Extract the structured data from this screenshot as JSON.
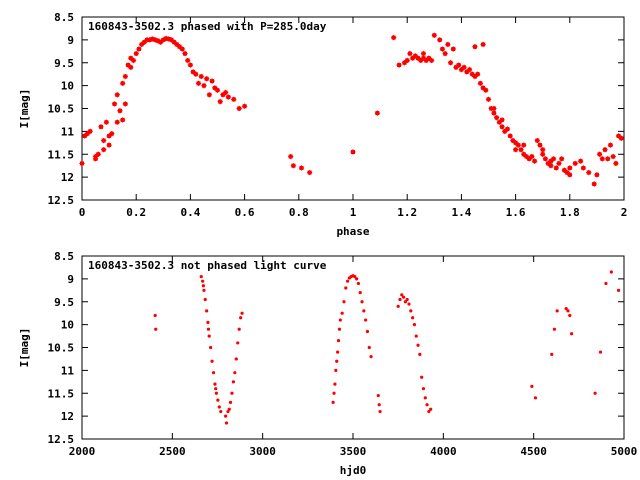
{
  "chart_data": [
    {
      "type": "scatter",
      "title": "160843-3502.3 phased with P=285.0day",
      "xlabel": "phase",
      "ylabel": "I[mag]",
      "xlim": [
        0,
        2
      ],
      "ylim": [
        8.5,
        12.5
      ],
      "y_inverted": true,
      "x_ticks": [
        0,
        0.2,
        0.4,
        0.6,
        0.8,
        1,
        1.2,
        1.4,
        1.6,
        1.8,
        2
      ],
      "y_ticks": [
        8.5,
        9,
        9.5,
        10,
        10.5,
        11,
        11.5,
        12,
        12.5
      ],
      "marker_color": "#ff0000",
      "grid": false,
      "series": [
        {
          "values": [
            [
              0.0,
              11.7
            ],
            [
              0.01,
              11.1
            ],
            [
              0.02,
              11.05
            ],
            [
              0.03,
              11.0
            ],
            [
              0.05,
              11.55
            ],
            [
              0.06,
              11.5
            ],
            [
              0.07,
              10.9
            ],
            [
              0.08,
              11.4
            ],
            [
              0.09,
              10.8
            ],
            [
              0.1,
              11.3
            ],
            [
              0.11,
              11.05
            ],
            [
              0.12,
              10.4
            ],
            [
              0.13,
              10.2
            ],
            [
              0.14,
              10.55
            ],
            [
              0.15,
              9.95
            ],
            [
              0.16,
              9.8
            ],
            [
              0.17,
              9.55
            ],
            [
              0.18,
              9.4
            ],
            [
              0.2,
              9.3
            ],
            [
              0.21,
              9.2
            ],
            [
              0.22,
              9.1
            ],
            [
              0.23,
              9.05
            ],
            [
              0.24,
              9.0
            ],
            [
              0.25,
              9.0
            ],
            [
              0.26,
              8.98
            ],
            [
              0.27,
              9.0
            ],
            [
              0.28,
              9.02
            ],
            [
              0.29,
              9.05
            ],
            [
              0.3,
              9.0
            ],
            [
              0.31,
              8.97
            ],
            [
              0.32,
              8.98
            ],
            [
              0.33,
              9.0
            ],
            [
              0.34,
              9.05
            ],
            [
              0.35,
              9.1
            ],
            [
              0.36,
              9.15
            ],
            [
              0.37,
              9.2
            ],
            [
              0.38,
              9.3
            ],
            [
              0.39,
              9.45
            ],
            [
              0.4,
              9.55
            ],
            [
              0.41,
              9.7
            ],
            [
              0.42,
              9.75
            ],
            [
              0.43,
              9.95
            ],
            [
              0.44,
              9.8
            ],
            [
              0.45,
              10.0
            ],
            [
              0.46,
              9.85
            ],
            [
              0.47,
              10.2
            ],
            [
              0.48,
              9.9
            ],
            [
              0.49,
              10.05
            ],
            [
              0.5,
              10.1
            ],
            [
              0.51,
              10.35
            ],
            [
              0.52,
              10.2
            ],
            [
              0.53,
              10.15
            ],
            [
              0.54,
              10.25
            ],
            [
              0.56,
              10.3
            ],
            [
              0.58,
              10.5
            ],
            [
              0.6,
              10.45
            ],
            [
              0.05,
              11.6
            ],
            [
              0.08,
              11.2
            ],
            [
              0.1,
              11.1
            ],
            [
              0.13,
              10.8
            ],
            [
              0.15,
              10.75
            ],
            [
              0.16,
              10.4
            ],
            [
              0.18,
              9.6
            ],
            [
              0.19,
              9.45
            ],
            [
              0.77,
              11.55
            ],
            [
              0.78,
              11.75
            ],
            [
              0.81,
              11.8
            ],
            [
              0.84,
              11.9
            ],
            [
              1.0,
              11.45
            ],
            [
              1.09,
              10.6
            ],
            [
              1.17,
              9.55
            ],
            [
              1.19,
              9.5
            ],
            [
              1.2,
              9.45
            ],
            [
              1.21,
              9.3
            ],
            [
              1.22,
              9.4
            ],
            [
              1.23,
              9.35
            ],
            [
              1.24,
              9.4
            ],
            [
              1.25,
              9.45
            ],
            [
              1.26,
              9.4
            ],
            [
              1.27,
              9.45
            ],
            [
              1.28,
              9.4
            ],
            [
              1.29,
              9.45
            ],
            [
              1.3,
              8.9
            ],
            [
              1.32,
              9.0
            ],
            [
              1.33,
              9.2
            ],
            [
              1.34,
              9.3
            ],
            [
              1.35,
              9.1
            ],
            [
              1.36,
              9.5
            ],
            [
              1.37,
              9.2
            ],
            [
              1.38,
              9.6
            ],
            [
              1.39,
              9.55
            ],
            [
              1.4,
              9.65
            ],
            [
              1.41,
              9.6
            ],
            [
              1.42,
              9.7
            ],
            [
              1.43,
              9.65
            ],
            [
              1.44,
              9.75
            ],
            [
              1.45,
              9.8
            ],
            [
              1.46,
              9.75
            ],
            [
              1.47,
              9.95
            ],
            [
              1.48,
              10.05
            ],
            [
              1.49,
              10.1
            ],
            [
              1.5,
              10.3
            ],
            [
              1.51,
              10.5
            ],
            [
              1.52,
              10.6
            ],
            [
              1.53,
              10.7
            ],
            [
              1.54,
              10.8
            ],
            [
              1.55,
              10.9
            ],
            [
              1.56,
              11.0
            ],
            [
              1.57,
              10.95
            ],
            [
              1.58,
              11.1
            ],
            [
              1.59,
              11.2
            ],
            [
              1.6,
              11.25
            ],
            [
              1.61,
              11.3
            ],
            [
              1.62,
              11.4
            ],
            [
              1.63,
              11.5
            ],
            [
              1.64,
              11.55
            ],
            [
              1.65,
              11.6
            ],
            [
              1.66,
              11.55
            ],
            [
              1.67,
              11.65
            ],
            [
              1.68,
              11.2
            ],
            [
              1.69,
              11.3
            ],
            [
              1.7,
              11.5
            ],
            [
              1.71,
              11.6
            ],
            [
              1.72,
              11.7
            ],
            [
              1.73,
              11.75
            ],
            [
              1.74,
              11.6
            ],
            [
              1.75,
              11.8
            ],
            [
              1.76,
              11.7
            ],
            [
              1.77,
              11.6
            ],
            [
              1.78,
              11.85
            ],
            [
              1.79,
              11.9
            ],
            [
              1.8,
              11.8
            ],
            [
              1.82,
              11.7
            ],
            [
              1.84,
              11.65
            ],
            [
              1.85,
              11.8
            ],
            [
              1.87,
              11.9
            ],
            [
              1.89,
              12.15
            ],
            [
              1.9,
              11.95
            ],
            [
              1.91,
              11.5
            ],
            [
              1.92,
              11.6
            ],
            [
              1.93,
              11.4
            ],
            [
              1.94,
              11.6
            ],
            [
              1.95,
              11.3
            ],
            [
              1.96,
              11.55
            ],
            [
              1.97,
              11.7
            ],
            [
              1.98,
              11.1
            ],
            [
              1.99,
              11.15
            ],
            [
              1.15,
              8.95
            ],
            [
              1.26,
              9.3
            ],
            [
              1.45,
              9.15
            ],
            [
              1.48,
              9.1
            ],
            [
              1.52,
              10.5
            ],
            [
              1.55,
              10.75
            ],
            [
              1.6,
              11.4
            ],
            [
              1.63,
              11.3
            ],
            [
              1.7,
              11.4
            ],
            [
              1.73,
              11.65
            ],
            [
              1.8,
              11.95
            ]
          ]
        }
      ]
    },
    {
      "type": "scatter",
      "title": "160843-3502.3 not phased light curve",
      "xlabel": "hjd0",
      "ylabel": "I[mag]",
      "xlim": [
        2000,
        5000
      ],
      "ylim": [
        8.5,
        12.5
      ],
      "y_inverted": true,
      "x_ticks": [
        2000,
        2500,
        3000,
        3500,
        4000,
        4500,
        5000
      ],
      "y_ticks": [
        8.5,
        9,
        9.5,
        10,
        10.5,
        11,
        11.5,
        12,
        12.5
      ],
      "marker_color": "#ff0000",
      "grid": false,
      "series": [
        {
          "values": [
            [
              2405,
              9.8
            ],
            [
              2408,
              10.1
            ],
            [
              2660,
              8.95
            ],
            [
              2668,
              9.05
            ],
            [
              2675,
              9.25
            ],
            [
              2682,
              9.45
            ],
            [
              2690,
              9.7
            ],
            [
              2697,
              9.95
            ],
            [
              2704,
              10.25
            ],
            [
              2712,
              10.5
            ],
            [
              2720,
              10.8
            ],
            [
              2728,
              11.05
            ],
            [
              2736,
              11.3
            ],
            [
              2744,
              11.5
            ],
            [
              2752,
              11.65
            ],
            [
              2760,
              11.8
            ],
            [
              2768,
              11.9
            ],
            [
              2800,
              12.15
            ],
            [
              2808,
              11.9
            ],
            [
              2815,
              11.85
            ],
            [
              2822,
              11.7
            ],
            [
              2830,
              11.5
            ],
            [
              2838,
              11.25
            ],
            [
              2846,
              11.05
            ],
            [
              2854,
              10.75
            ],
            [
              2862,
              10.4
            ],
            [
              2870,
              10.1
            ],
            [
              2878,
              9.85
            ],
            [
              2886,
              9.75
            ],
            [
              2672,
              9.15
            ],
            [
              2700,
              10.1
            ],
            [
              2740,
              11.4
            ],
            [
              2795,
              12.0
            ],
            [
              3390,
              11.7
            ],
            [
              3395,
              11.5
            ],
            [
              3400,
              11.3
            ],
            [
              3405,
              11.0
            ],
            [
              3410,
              10.8
            ],
            [
              3415,
              10.6
            ],
            [
              3420,
              10.35
            ],
            [
              3425,
              10.1
            ],
            [
              3430,
              9.9
            ],
            [
              3440,
              9.75
            ],
            [
              3450,
              9.5
            ],
            [
              3460,
              9.2
            ],
            [
              3470,
              9.05
            ],
            [
              3480,
              8.98
            ],
            [
              3490,
              8.95
            ],
            [
              3500,
              8.93
            ],
            [
              3510,
              8.95
            ],
            [
              3520,
              9.0
            ],
            [
              3530,
              9.1
            ],
            [
              3540,
              9.3
            ],
            [
              3550,
              9.5
            ],
            [
              3560,
              9.7
            ],
            [
              3570,
              9.9
            ],
            [
              3580,
              10.15
            ],
            [
              3590,
              10.5
            ],
            [
              3600,
              10.7
            ],
            [
              3640,
              11.55
            ],
            [
              3645,
              11.75
            ],
            [
              3650,
              11.9
            ],
            [
              3750,
              9.6
            ],
            [
              3760,
              9.45
            ],
            [
              3770,
              9.35
            ],
            [
              3780,
              9.4
            ],
            [
              3790,
              9.5
            ],
            [
              3800,
              9.45
            ],
            [
              3810,
              9.55
            ],
            [
              3820,
              9.7
            ],
            [
              3830,
              9.85
            ],
            [
              3840,
              10.0
            ],
            [
              3850,
              10.25
            ],
            [
              3860,
              10.45
            ],
            [
              3870,
              10.65
            ],
            [
              3880,
              11.15
            ],
            [
              3890,
              11.4
            ],
            [
              3900,
              11.6
            ],
            [
              3910,
              11.75
            ],
            [
              3920,
              11.9
            ],
            [
              3930,
              11.85
            ],
            [
              4490,
              11.35
            ],
            [
              4510,
              11.6
            ],
            [
              4600,
              10.65
            ],
            [
              4615,
              10.1
            ],
            [
              4630,
              9.7
            ],
            [
              4680,
              9.65
            ],
            [
              4690,
              9.7
            ],
            [
              4700,
              9.8
            ],
            [
              4710,
              10.2
            ],
            [
              4840,
              11.5
            ],
            [
              4870,
              10.6
            ],
            [
              4900,
              9.1
            ],
            [
              4930,
              8.85
            ],
            [
              4970,
              9.25
            ]
          ]
        }
      ]
    }
  ]
}
